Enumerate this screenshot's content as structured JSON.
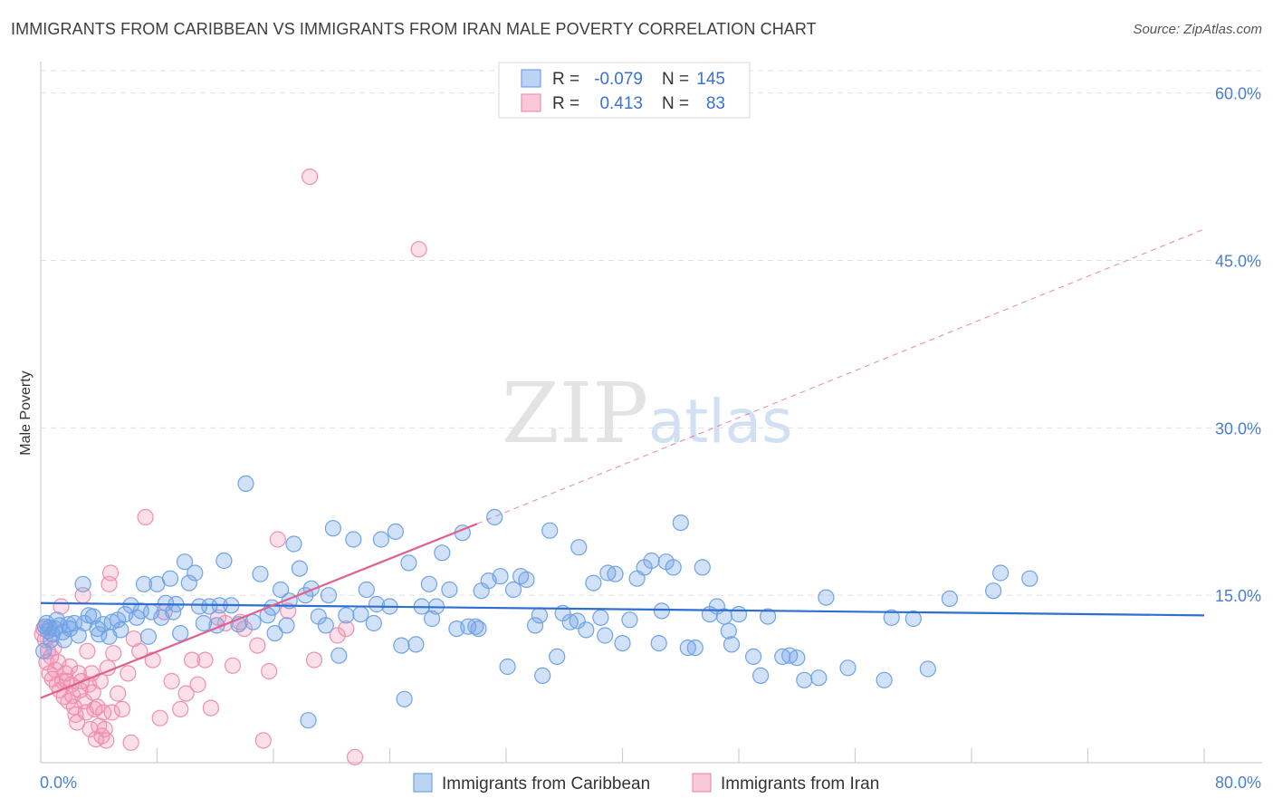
{
  "header": {
    "title": "IMMIGRANTS FROM CARIBBEAN VS IMMIGRANTS FROM IRAN MALE POVERTY CORRELATION CHART",
    "source": "Source: ZipAtlas.com"
  },
  "watermark": {
    "part1": "ZIP",
    "part2": "atlas"
  },
  "colors": {
    "blue": "#6fa3e6",
    "blue_line": "#2f6fd0",
    "pink": "#f08fb0",
    "pink_line": "#e0608e",
    "tick_text": "#4a7fd0"
  },
  "legend": {
    "rows": [
      {
        "r_label": "R =",
        "r_value": "-0.079",
        "n_label": "N =",
        "n_value": "145"
      },
      {
        "r_label": "R =",
        "r_value": "0.413",
        "n_label": "N =",
        "n_value": "83"
      }
    ]
  },
  "chart_data": {
    "type": "scatter",
    "title": "IMMIGRANTS FROM CARIBBEAN VS IMMIGRANTS FROM IRAN MALE POVERTY CORRELATION CHART",
    "xlabel": "",
    "ylabel": "Male Poverty",
    "xlim": [
      0,
      80
    ],
    "ylim": [
      0,
      62
    ],
    "x_tick_labels": [
      "0.0%",
      "80.0%"
    ],
    "y_ticks": [
      15,
      30,
      45,
      60
    ],
    "y_tick_labels": [
      "15.0%",
      "30.0%",
      "45.0%",
      "60.0%"
    ],
    "grid": true,
    "legend_placement": "bottom",
    "series": [
      {
        "name": "Immigrants from Caribbean",
        "color": "#6fa3e6",
        "trend": {
          "x": [
            0,
            80
          ],
          "y": [
            14.3,
            13.2
          ],
          "style": "solid"
        },
        "points": [
          [
            0.3,
            12.2
          ],
          [
            0.5,
            11.8
          ],
          [
            0.6,
            12.1
          ],
          [
            0.8,
            11.5
          ],
          [
            1.0,
            12.0
          ],
          [
            1.3,
            12.3
          ],
          [
            1.6,
            11.0
          ],
          [
            2.0,
            12.0
          ],
          [
            2.3,
            12.5
          ],
          [
            2.9,
            16.0
          ],
          [
            3.0,
            12.5
          ],
          [
            3.6,
            13.1
          ],
          [
            4.0,
            11.5
          ],
          [
            4.3,
            12.4
          ],
          [
            4.7,
            11.3
          ],
          [
            5.3,
            12.8
          ],
          [
            5.8,
            13.3
          ],
          [
            6.2,
            14.1
          ],
          [
            6.6,
            13.0
          ],
          [
            7.1,
            16.0
          ],
          [
            7.4,
            11.3
          ],
          [
            7.6,
            13.5
          ],
          [
            8.0,
            16.0
          ],
          [
            8.3,
            13.0
          ],
          [
            8.6,
            14.3
          ],
          [
            8.9,
            16.5
          ],
          [
            9.3,
            14.2
          ],
          [
            9.6,
            11.6
          ],
          [
            9.9,
            18.0
          ],
          [
            10.2,
            16.1
          ],
          [
            10.6,
            17.0
          ],
          [
            10.9,
            14.0
          ],
          [
            11.2,
            12.5
          ],
          [
            11.6,
            14.0
          ],
          [
            12.1,
            12.3
          ],
          [
            12.6,
            18.1
          ],
          [
            13.1,
            14.1
          ],
          [
            13.6,
            12.4
          ],
          [
            14.1,
            25.0
          ],
          [
            14.6,
            12.6
          ],
          [
            15.1,
            16.9
          ],
          [
            15.6,
            13.2
          ],
          [
            16.1,
            11.6
          ],
          [
            16.5,
            15.5
          ],
          [
            16.9,
            12.3
          ],
          [
            17.4,
            19.6
          ],
          [
            17.8,
            17.4
          ],
          [
            18.2,
            15.0
          ],
          [
            18.6,
            15.6
          ],
          [
            19.1,
            13.1
          ],
          [
            19.6,
            12.3
          ],
          [
            20.1,
            21.0
          ],
          [
            20.5,
            9.6
          ],
          [
            21.0,
            13.2
          ],
          [
            21.5,
            20.0
          ],
          [
            22.0,
            13.3
          ],
          [
            22.4,
            15.5
          ],
          [
            22.9,
            12.5
          ],
          [
            23.4,
            20.0
          ],
          [
            24.0,
            14.0
          ],
          [
            24.4,
            20.7
          ],
          [
            24.8,
            10.5
          ],
          [
            25.3,
            17.9
          ],
          [
            25.8,
            10.6
          ],
          [
            26.2,
            14.0
          ],
          [
            26.7,
            16.0
          ],
          [
            27.2,
            14.0
          ],
          [
            27.6,
            18.8
          ],
          [
            28.1,
            15.5
          ],
          [
            28.6,
            12.0
          ],
          [
            29.0,
            20.6
          ],
          [
            29.4,
            12.2
          ],
          [
            29.9,
            12.2
          ],
          [
            30.3,
            15.4
          ],
          [
            30.8,
            16.3
          ],
          [
            31.2,
            22.0
          ],
          [
            31.6,
            16.7
          ],
          [
            32.1,
            8.6
          ],
          [
            32.5,
            15.5
          ],
          [
            33.0,
            16.7
          ],
          [
            33.4,
            16.4
          ],
          [
            34.0,
            12.3
          ],
          [
            34.5,
            7.8
          ],
          [
            35.0,
            20.8
          ],
          [
            35.5,
            9.5
          ],
          [
            35.9,
            13.4
          ],
          [
            36.4,
            12.6
          ],
          [
            37.0,
            19.3
          ],
          [
            37.5,
            11.9
          ],
          [
            38.0,
            16.1
          ],
          [
            38.5,
            13.0
          ],
          [
            39.0,
            17.0
          ],
          [
            39.5,
            16.9
          ],
          [
            40.0,
            10.7
          ],
          [
            40.5,
            12.8
          ],
          [
            41.0,
            16.5
          ],
          [
            41.5,
            17.5
          ],
          [
            42.0,
            18.1
          ],
          [
            42.5,
            10.7
          ],
          [
            43.0,
            18.0
          ],
          [
            43.5,
            17.5
          ],
          [
            44.0,
            21.5
          ],
          [
            44.5,
            10.3
          ],
          [
            45.0,
            10.3
          ],
          [
            45.5,
            17.5
          ],
          [
            46.0,
            13.3
          ],
          [
            46.5,
            14.0
          ],
          [
            47.0,
            13.1
          ],
          [
            47.5,
            10.6
          ],
          [
            48.0,
            13.3
          ],
          [
            49.0,
            9.5
          ],
          [
            49.5,
            7.8
          ],
          [
            50.0,
            13.1
          ],
          [
            51.0,
            9.5
          ],
          [
            51.5,
            9.6
          ],
          [
            52.0,
            9.4
          ],
          [
            52.5,
            7.4
          ],
          [
            53.5,
            7.6
          ],
          [
            54.0,
            14.8
          ],
          [
            55.5,
            8.5
          ],
          [
            58.0,
            7.4
          ],
          [
            58.5,
            13.0
          ],
          [
            60.0,
            12.9
          ],
          [
            61.0,
            8.4
          ],
          [
            62.5,
            14.7
          ],
          [
            65.5,
            15.4
          ],
          [
            66.0,
            17.0
          ],
          [
            68.0,
            16.5
          ],
          [
            18.4,
            3.8
          ],
          [
            25.0,
            5.7
          ],
          [
            0.2,
            10.0
          ],
          [
            0.4,
            12.5
          ],
          [
            0.7,
            11.0
          ],
          [
            1.1,
            12.8
          ],
          [
            1.5,
            11.7
          ],
          [
            1.9,
            12.4
          ],
          [
            2.6,
            11.4
          ],
          [
            3.3,
            13.2
          ],
          [
            3.9,
            12.0
          ],
          [
            4.9,
            12.6
          ],
          [
            5.5,
            11.9
          ],
          [
            6.9,
            13.6
          ],
          [
            9.1,
            13.5
          ],
          [
            12.3,
            14.1
          ],
          [
            15.9,
            13.9
          ],
          [
            17.1,
            14.5
          ],
          [
            19.8,
            15.0
          ],
          [
            23.1,
            14.2
          ],
          [
            26.9,
            12.9
          ],
          [
            30.1,
            12.0
          ],
          [
            34.3,
            13.2
          ],
          [
            36.9,
            12.7
          ],
          [
            38.8,
            11.4
          ],
          [
            42.7,
            13.6
          ],
          [
            47.3,
            11.8
          ]
        ]
      },
      {
        "name": "Immigrants from Iran",
        "color": "#f08fb0",
        "trend": {
          "x": [
            0,
            30,
            80
          ],
          "y": [
            5.8,
            21.4,
            47.8
          ],
          "style": "solid-then-dashed"
        },
        "points": [
          [
            0.2,
            12.0
          ],
          [
            0.3,
            11.0
          ],
          [
            0.4,
            9.0
          ],
          [
            0.5,
            10.0
          ],
          [
            0.6,
            8.0
          ],
          [
            0.7,
            9.5
          ],
          [
            0.8,
            7.5
          ],
          [
            0.9,
            10.3
          ],
          [
            1.0,
            8.3
          ],
          [
            1.1,
            7.0
          ],
          [
            1.2,
            9.0
          ],
          [
            1.3,
            6.5
          ],
          [
            1.4,
            14.0
          ],
          [
            1.5,
            7.3
          ],
          [
            1.6,
            5.9
          ],
          [
            1.7,
            8.0
          ],
          [
            1.8,
            7.3
          ],
          [
            1.9,
            5.5
          ],
          [
            2.0,
            8.6
          ],
          [
            2.1,
            7.0
          ],
          [
            2.2,
            6.0
          ],
          [
            2.3,
            5.0
          ],
          [
            2.4,
            4.3
          ],
          [
            2.5,
            3.6
          ],
          [
            2.6,
            8.0
          ],
          [
            2.7,
            6.5
          ],
          [
            2.8,
            7.3
          ],
          [
            2.9,
            15.0
          ],
          [
            3.0,
            5.5
          ],
          [
            3.1,
            4.5
          ],
          [
            3.2,
            10.0
          ],
          [
            3.3,
            7.0
          ],
          [
            3.4,
            3.0
          ],
          [
            3.5,
            8.0
          ],
          [
            3.6,
            6.3
          ],
          [
            3.7,
            4.8
          ],
          [
            3.8,
            2.1
          ],
          [
            3.9,
            5.0
          ],
          [
            4.0,
            3.3
          ],
          [
            4.1,
            7.3
          ],
          [
            4.2,
            2.4
          ],
          [
            4.3,
            4.5
          ],
          [
            4.4,
            3.0
          ],
          [
            4.5,
            2.0
          ],
          [
            4.6,
            8.5
          ],
          [
            4.7,
            16.0
          ],
          [
            4.8,
            17.0
          ],
          [
            4.9,
            4.5
          ],
          [
            5.0,
            9.8
          ],
          [
            5.3,
            6.2
          ],
          [
            5.6,
            4.8
          ],
          [
            6.0,
            8.0
          ],
          [
            6.2,
            1.8
          ],
          [
            6.4,
            11.1
          ],
          [
            6.8,
            10.0
          ],
          [
            7.2,
            22.0
          ],
          [
            7.7,
            9.2
          ],
          [
            8.2,
            4.0
          ],
          [
            8.5,
            13.5
          ],
          [
            9.0,
            7.3
          ],
          [
            9.6,
            4.8
          ],
          [
            10.0,
            6.2
          ],
          [
            10.4,
            9.2
          ],
          [
            10.8,
            7.0
          ],
          [
            11.3,
            9.2
          ],
          [
            11.7,
            4.9
          ],
          [
            12.2,
            13.0
          ],
          [
            12.7,
            12.5
          ],
          [
            13.2,
            8.7
          ],
          [
            13.7,
            12.6
          ],
          [
            14.0,
            12.0
          ],
          [
            14.9,
            10.5
          ],
          [
            15.3,
            2.0
          ],
          [
            15.7,
            8.2
          ],
          [
            16.3,
            20.0
          ],
          [
            17.0,
            13.6
          ],
          [
            18.5,
            52.5
          ],
          [
            18.8,
            9.2
          ],
          [
            20.4,
            11.4
          ],
          [
            21.0,
            12.0
          ],
          [
            21.6,
            0.5
          ],
          [
            26.0,
            46.0
          ],
          [
            0.1,
            11.5
          ]
        ]
      }
    ]
  }
}
